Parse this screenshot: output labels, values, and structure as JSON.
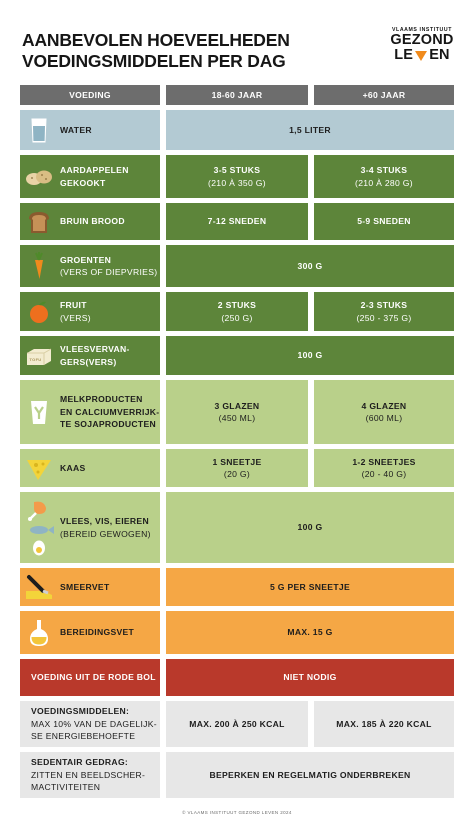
{
  "title": {
    "line1": "AANBEVOLEN HOEVEELHEDEN",
    "line2": "VOEDINGSMIDDELEN PER DAG"
  },
  "logo": {
    "org": "VLAAMS INSTITUUT",
    "word1": "GEZOND",
    "word2_a": "LE",
    "word2_b": "EN"
  },
  "headers": {
    "col1": "VOEDING",
    "col2": "18-60 JAAR",
    "col3": "+60 JAAR"
  },
  "rows": {
    "water": {
      "icon": "water-glass-icon",
      "label1": "WATER",
      "value": "1,5 LITER"
    },
    "potatoes": {
      "icon": "potatoes-icon",
      "label1": "AARDAPPELEN",
      "label2": "GEKOOKT",
      "adult1": "3-5 STUKS",
      "adult2": "(210 À 350 G)",
      "senior1": "3-4 STUKS",
      "senior2": "(210 À 280 G)"
    },
    "bread": {
      "icon": "bread-icon",
      "label1": "BRUIN BROOD",
      "adult1": "7-12 SNEDEN",
      "senior1": "5-9 SNEDEN"
    },
    "vegetables": {
      "icon": "carrot-icon",
      "label1": "GROENTEN",
      "label2": "(VERS OF DIEPVRIES)",
      "value": "300 G"
    },
    "fruit": {
      "icon": "orange-icon",
      "label1": "FRUIT",
      "label2": "(VERS)",
      "adult1": "2 STUKS",
      "adult2": "(250 G)",
      "senior1": "2-3 STUKS",
      "senior2": "(250 - 375 G)"
    },
    "meat_substitutes": {
      "icon": "tofu-icon",
      "icon_text": "TOFU",
      "label1": "VLEESVERVAN-",
      "label2": "GERS(VERS)",
      "value": "100 G"
    },
    "dairy": {
      "icon": "yoghurt-icon",
      "label1": "MELKPRODUCTEN",
      "label2": "EN CALCIUMVERRIJK-",
      "label3": "TE SOJAPRODUCTEN",
      "adult1": "3 GLAZEN",
      "adult2": "(450 ML)",
      "senior1": "4 GLAZEN",
      "senior2": "(600 ML)"
    },
    "cheese": {
      "icon": "cheese-icon",
      "label1": "KAAS",
      "adult1": "1 SNEETJE",
      "adult2": "(20 G)",
      "senior1": "1-2 SNEETJES",
      "senior2": "(20 - 40 G)"
    },
    "meat": {
      "icon": "meat-fish-egg-icon",
      "label1": "VLEES, VIS, EIEREN",
      "label2": "(BEREID GEWOGEN)",
      "value": "100 G"
    },
    "spread": {
      "icon": "butter-knife-icon",
      "label1": "SMEERVET",
      "value": "5 G PER SNEETJE"
    },
    "cooking_fat": {
      "icon": "oil-bottle-icon",
      "label1": "BEREIDINGSVET",
      "value": "MAX. 15 G"
    },
    "red_ball": {
      "label1": "VOEDING UIT DE RODE BOL",
      "value": "NIET NODIG"
    },
    "energy": {
      "label1": "VOEDINGSMIDDELEN:",
      "label2": "MAX 10% VAN DE DAGELIJK-",
      "label3": "SE ENERGIEBEHOEFTE",
      "adult1": "MAX. 200 À 250 KCAL",
      "senior1": "MAX. 185 À 220 KCAL"
    },
    "sedentary": {
      "label1": "SEDENTAIR GEDRAG:",
      "label2": "ZITTEN EN BEELDSCHER-",
      "label3": "MACTIVITEITEN",
      "value": "BEPERKEN EN REGELMATIG ONDERBREKEN"
    }
  },
  "colors": {
    "header": "#6d6d6d",
    "water": "#b3cad3",
    "dark_green": "#5d853a",
    "light_green": "#b9d08a",
    "orange": "#f5a745",
    "red": "#b9392b",
    "grey": "#e7e7e7",
    "logo_accent": "#f08a1c"
  },
  "footer": "© VLAAMS INSTITUUT GEZOND LEVEN 2024"
}
